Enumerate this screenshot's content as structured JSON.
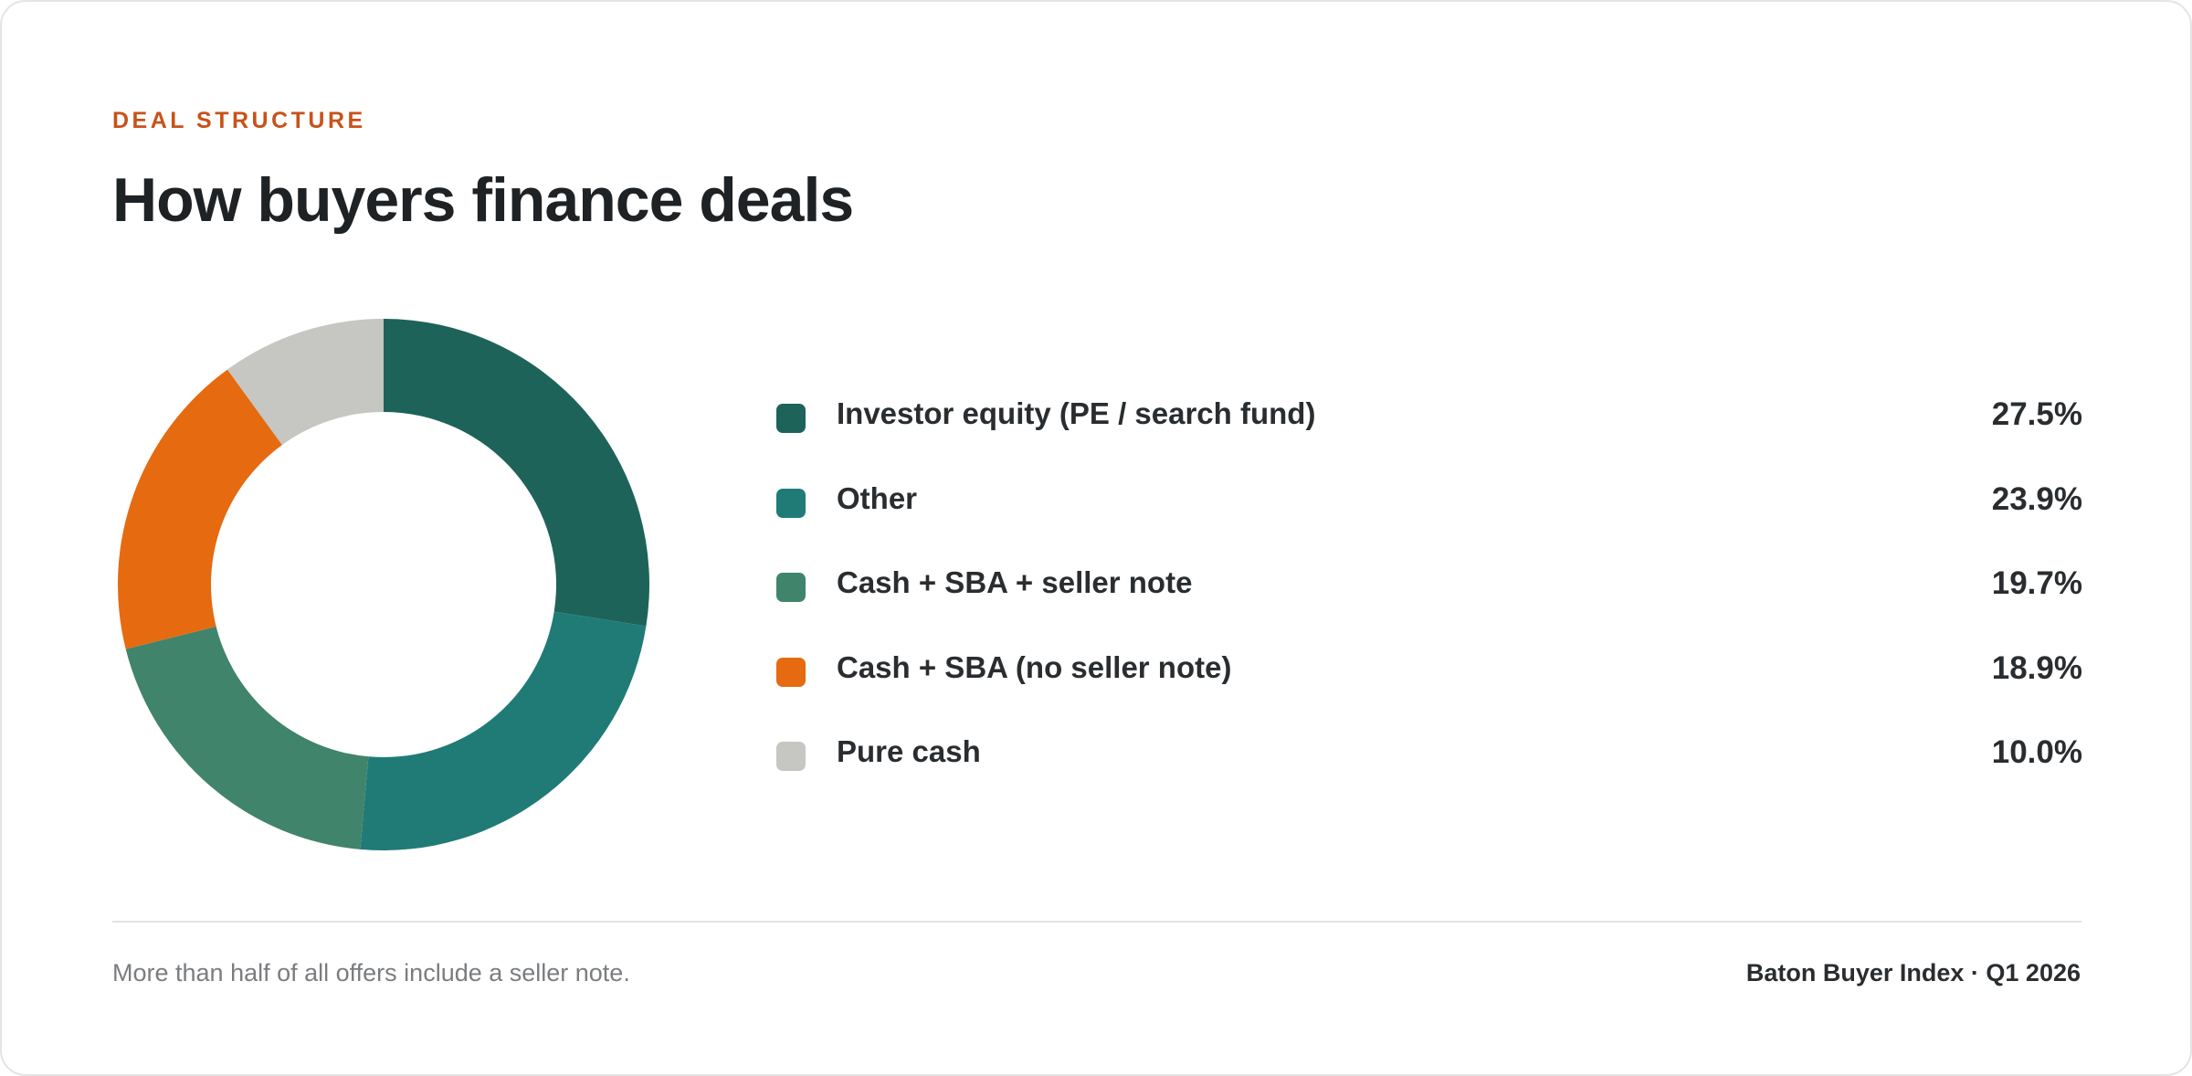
{
  "header": {
    "eyebrow": "DEAL STRUCTURE",
    "title": "How buyers finance deals"
  },
  "chart_data": {
    "type": "pie",
    "style": "donut",
    "categories": [
      "Investor equity (PE / search fund)",
      "Other",
      "Cash + SBA + seller note",
      "Cash + SBA (no seller note)",
      "Pure cash"
    ],
    "values": [
      27.5,
      23.9,
      19.7,
      18.9,
      10.0
    ],
    "value_labels": [
      "27.5%",
      "23.9%",
      "19.7%",
      "18.9%",
      "10.0%"
    ],
    "colors": [
      "#1e6359",
      "#207b77",
      "#40846b",
      "#e56a10",
      "#c6c6c2"
    ],
    "unit": "%",
    "legend_position": "right"
  },
  "footer": {
    "note": "More than half of all offers include a seller note.",
    "source": "Baton Buyer Index · Q1 2026"
  }
}
